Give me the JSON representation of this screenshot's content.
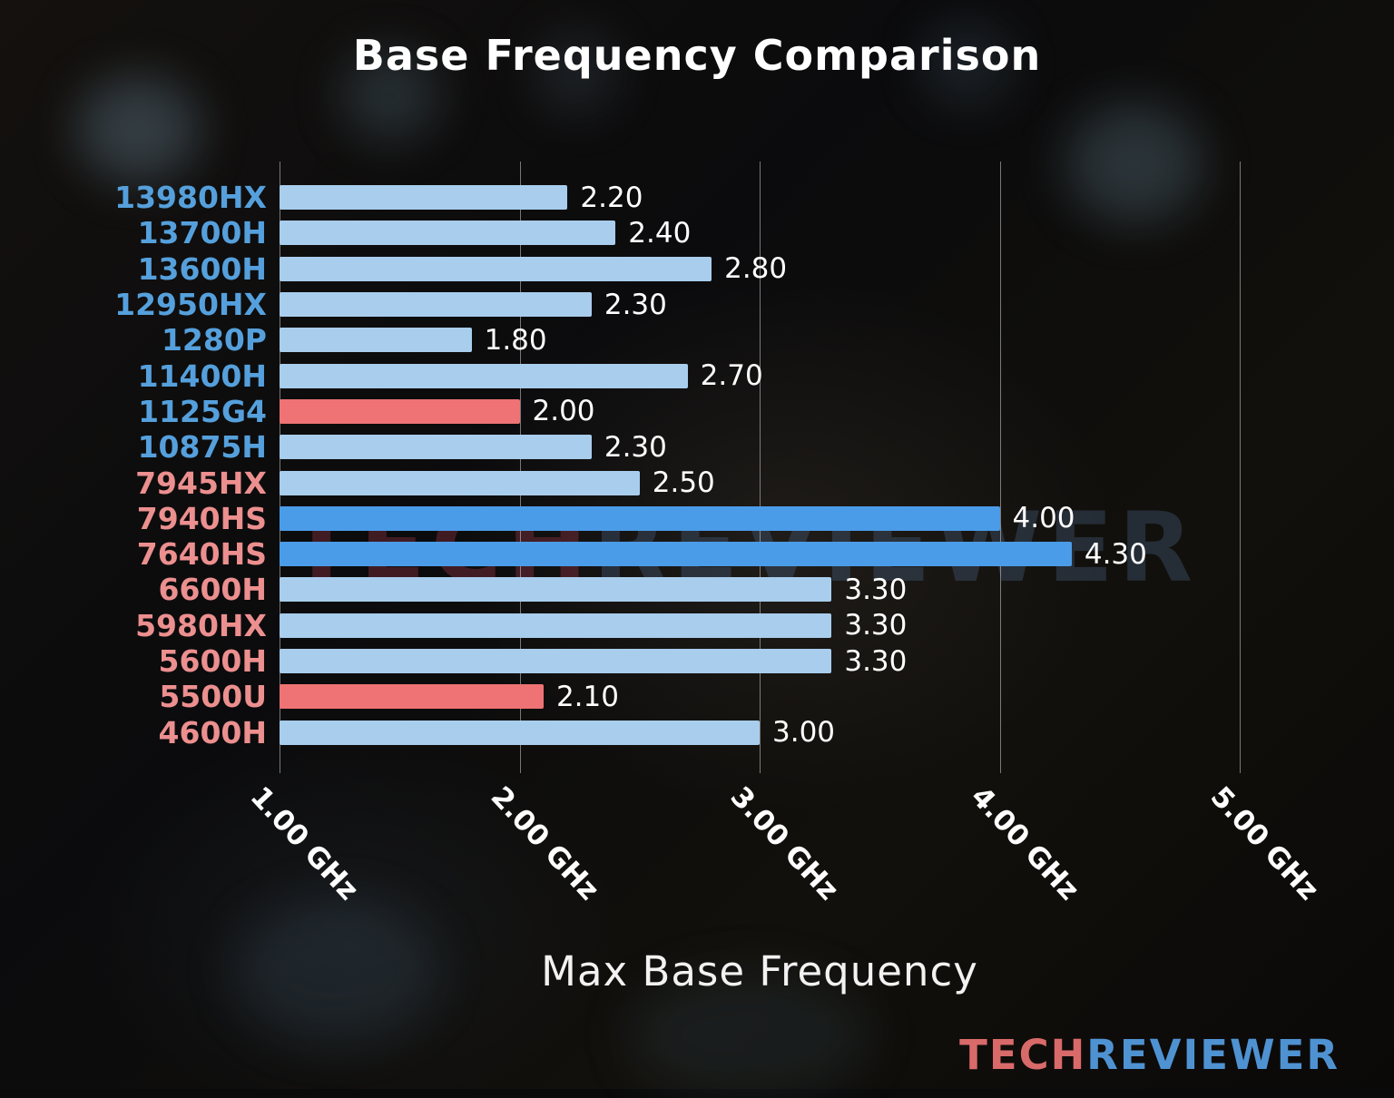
{
  "title": "Base Frequency Comparison",
  "watermark": {
    "part1": "TECH",
    "part2": "REVIEWER"
  },
  "logo": {
    "part1": "TECH",
    "part2": "REVIEWER"
  },
  "colors": {
    "title": "#ffffff",
    "value_label": "#ffffff",
    "tick_label": "#ffffff",
    "gridline": "rgba(210,210,210,0.55)",
    "bar_styles": {
      "blue_light": "#a9cdec",
      "blue_bright": "#4b9ce8",
      "red": "#ef7374"
    },
    "label_styles": {
      "blue": "#55a0dc",
      "red": "#ec8f8f"
    },
    "watermark_tech": "rgba(178,62,82,0.32)",
    "watermark_reviewer": "rgba(84,112,152,0.30)",
    "logo_tech": "#d96a6a",
    "logo_reviewer": "#4f92d2"
  },
  "chart_data": {
    "type": "bar",
    "orientation": "horizontal",
    "title": "Base Frequency Comparison",
    "xlabel": "Max Base Frequency",
    "bar_baseline": 1.0,
    "xlim": [
      1.0,
      5.45
    ],
    "x_ticks": [
      {
        "label": "1.00 GHz",
        "value": 1.0
      },
      {
        "label": "2.00 GHz",
        "value": 2.0
      },
      {
        "label": "3.00 GHz",
        "value": 3.0
      },
      {
        "label": "4.00 GHz",
        "value": 4.0
      },
      {
        "label": "5.00 GHz",
        "value": 5.0
      }
    ],
    "items": [
      {
        "model": "13980HX",
        "value": 2.2,
        "value_label": "2.20",
        "bar_style": "blue_light",
        "label_style": "blue"
      },
      {
        "model": "13700H",
        "value": 2.4,
        "value_label": "2.40",
        "bar_style": "blue_light",
        "label_style": "blue"
      },
      {
        "model": "13600H",
        "value": 2.8,
        "value_label": "2.80",
        "bar_style": "blue_light",
        "label_style": "blue"
      },
      {
        "model": "12950HX",
        "value": 2.3,
        "value_label": "2.30",
        "bar_style": "blue_light",
        "label_style": "blue"
      },
      {
        "model": "1280P",
        "value": 1.8,
        "value_label": "1.80",
        "bar_style": "blue_light",
        "label_style": "blue"
      },
      {
        "model": "11400H",
        "value": 2.7,
        "value_label": "2.70",
        "bar_style": "blue_light",
        "label_style": "blue"
      },
      {
        "model": "1125G4",
        "value": 2.0,
        "value_label": "2.00",
        "bar_style": "red",
        "label_style": "blue"
      },
      {
        "model": "10875H",
        "value": 2.3,
        "value_label": "2.30",
        "bar_style": "blue_light",
        "label_style": "blue"
      },
      {
        "model": "7945HX",
        "value": 2.5,
        "value_label": "2.50",
        "bar_style": "blue_light",
        "label_style": "red"
      },
      {
        "model": "7940HS",
        "value": 4.0,
        "value_label": "4.00",
        "bar_style": "blue_bright",
        "label_style": "red"
      },
      {
        "model": "7640HS",
        "value": 4.3,
        "value_label": "4.30",
        "bar_style": "blue_bright",
        "label_style": "red"
      },
      {
        "model": "6600H",
        "value": 3.3,
        "value_label": "3.30",
        "bar_style": "blue_light",
        "label_style": "red"
      },
      {
        "model": "5980HX",
        "value": 3.3,
        "value_label": "3.30",
        "bar_style": "blue_light",
        "label_style": "red"
      },
      {
        "model": "5600H",
        "value": 3.3,
        "value_label": "3.30",
        "bar_style": "blue_light",
        "label_style": "red"
      },
      {
        "model": "5500U",
        "value": 2.1,
        "value_label": "2.10",
        "bar_style": "red",
        "label_style": "red"
      },
      {
        "model": "4600H",
        "value": 3.0,
        "value_label": "3.00",
        "bar_style": "blue_light",
        "label_style": "red"
      }
    ]
  }
}
